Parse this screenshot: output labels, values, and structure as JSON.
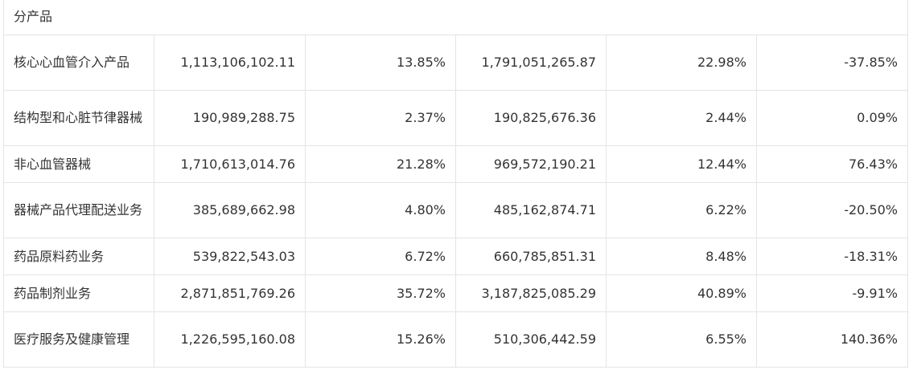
{
  "table": {
    "section_label": "分产品",
    "rows": [
      {
        "name": "核心心血管介入产品",
        "revenue": "1,113,106,102.11",
        "share": "13.85%",
        "prev_revenue": "1,791,051,265.87",
        "prev_share": "22.98%",
        "change": "-37.85%"
      },
      {
        "name": "结构型和心脏节律器械",
        "revenue": "190,989,288.75",
        "share": "2.37%",
        "prev_revenue": "190,825,676.36",
        "prev_share": "2.44%",
        "change": "0.09%"
      },
      {
        "name": "非心血管器械",
        "revenue": "1,710,613,014.76",
        "share": "21.28%",
        "prev_revenue": "969,572,190.21",
        "prev_share": "12.44%",
        "change": "76.43%"
      },
      {
        "name": "器械产品代理配送业务",
        "revenue": "385,689,662.98",
        "share": "4.80%",
        "prev_revenue": "485,162,874.71",
        "prev_share": "6.22%",
        "change": "-20.50%"
      },
      {
        "name": "药品原料药业务",
        "revenue": "539,822,543.03",
        "share": "6.72%",
        "prev_revenue": "660,785,851.31",
        "prev_share": "8.48%",
        "change": "-18.31%"
      },
      {
        "name": "药品制剂业务",
        "revenue": "2,871,851,769.26",
        "share": "35.72%",
        "prev_revenue": "3,187,825,085.29",
        "prev_share": "40.89%",
        "change": "-9.91%"
      },
      {
        "name": "医疗服务及健康管理",
        "revenue": "1,226,595,160.08",
        "share": "15.26%",
        "prev_revenue": "510,306,442.59",
        "prev_share": "6.55%",
        "change": "140.36%"
      }
    ]
  }
}
